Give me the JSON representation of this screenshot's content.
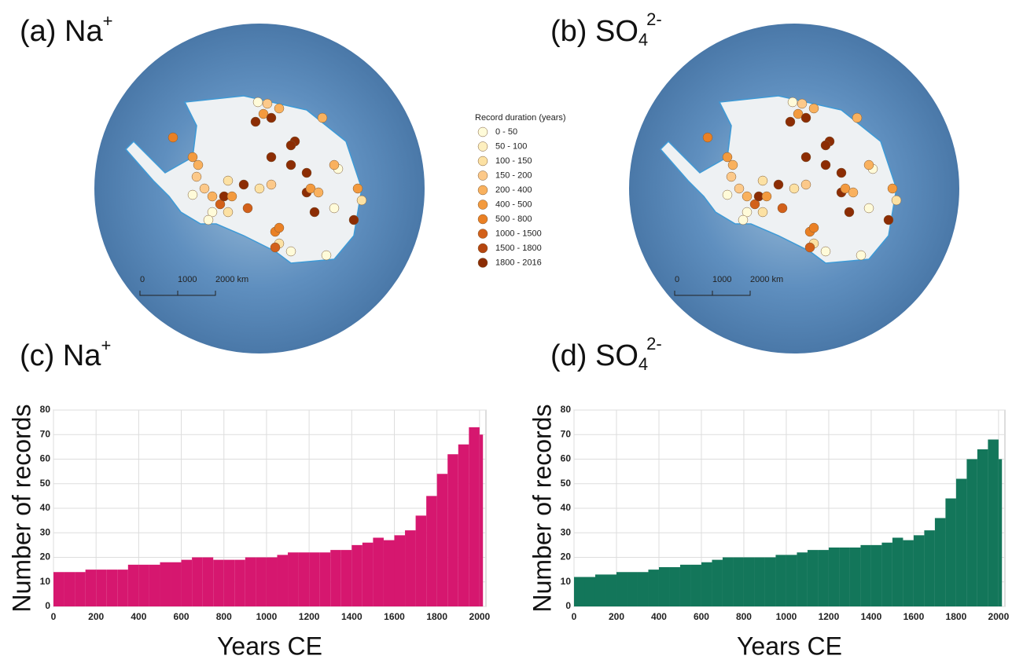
{
  "maps": [
    {
      "text": "(a) Na",
      "sup": "+"
    },
    {
      "text": "(b) SO",
      "sub": "4",
      "sup": "2-"
    }
  ],
  "legend": {
    "title": "Record duration (years)",
    "items": [
      {
        "label": "0 - 50",
        "color": "#fffbd9"
      },
      {
        "label": "50 - 100",
        "color": "#fdefbf"
      },
      {
        "label": "100 - 150",
        "color": "#fce1a3"
      },
      {
        "label": "150 - 200",
        "color": "#fcc98a"
      },
      {
        "label": "200 - 400",
        "color": "#f9b15e"
      },
      {
        "label": "400 - 500",
        "color": "#f39a3e"
      },
      {
        "label": "500 - 800",
        "color": "#ea8024"
      },
      {
        "label": "1000 - 1500",
        "color": "#d2601a"
      },
      {
        "label": "1500 - 1800",
        "color": "#b5460f"
      },
      {
        "label": "1800 - 2016",
        "color": "#8c2d04"
      }
    ]
  },
  "scale_bar": {
    "labels": [
      "0",
      "1000",
      "2000 km"
    ]
  },
  "chart_data": [
    {
      "type": "histogram",
      "title": {
        "text": "(c) Na",
        "sup": "+"
      },
      "xlabel": "Years CE",
      "ylabel": "Number of records",
      "color": "#d6176f",
      "grid": true,
      "bins": [
        0,
        50,
        100,
        150,
        200,
        250,
        300,
        350,
        400,
        450,
        500,
        550,
        600,
        650,
        700,
        750,
        800,
        850,
        900,
        950,
        1000,
        1050,
        1100,
        1150,
        1200,
        1250,
        1300,
        1350,
        1400,
        1450,
        1500,
        1550,
        1600,
        1650,
        1700,
        1750,
        1800,
        1850,
        1900,
        1950,
        2000,
        2016
      ],
      "counts": [
        14,
        14,
        14,
        15,
        15,
        15,
        15,
        17,
        17,
        17,
        18,
        18,
        19,
        20,
        20,
        19,
        19,
        19,
        20,
        20,
        20,
        21,
        22,
        22,
        22,
        22,
        23,
        23,
        25,
        26,
        28,
        27,
        29,
        31,
        37,
        45,
        54,
        62,
        66,
        73,
        70
      ],
      "xlim": [
        0,
        2030
      ],
      "ylim": [
        0,
        80
      ],
      "xticks": [
        0,
        200,
        400,
        600,
        800,
        1000,
        1200,
        1400,
        1600,
        1800,
        2000
      ],
      "yticks": [
        0,
        10,
        20,
        30,
        40,
        50,
        60,
        70,
        80
      ]
    },
    {
      "type": "histogram",
      "title": {
        "text": "(d) SO",
        "sub": "4",
        "sup": "2-"
      },
      "xlabel": "Years CE",
      "ylabel": "Number of records",
      "color": "#13765a",
      "grid": true,
      "bins": [
        0,
        50,
        100,
        150,
        200,
        250,
        300,
        350,
        400,
        450,
        500,
        550,
        600,
        650,
        700,
        750,
        800,
        850,
        900,
        950,
        1000,
        1050,
        1100,
        1150,
        1200,
        1250,
        1300,
        1350,
        1400,
        1450,
        1500,
        1550,
        1600,
        1650,
        1700,
        1750,
        1800,
        1850,
        1900,
        1950,
        2000,
        2016
      ],
      "counts": [
        12,
        12,
        13,
        13,
        14,
        14,
        14,
        15,
        16,
        16,
        17,
        17,
        18,
        19,
        20,
        20,
        20,
        20,
        20,
        21,
        21,
        22,
        23,
        23,
        24,
        24,
        24,
        25,
        25,
        26,
        28,
        27,
        29,
        31,
        36,
        44,
        52,
        60,
        64,
        68,
        60
      ],
      "xlim": [
        0,
        2030
      ],
      "ylim": [
        0,
        80
      ],
      "xticks": [
        0,
        200,
        400,
        600,
        800,
        1000,
        1200,
        1400,
        1600,
        1800,
        2000
      ],
      "yticks": [
        0,
        10,
        20,
        30,
        40,
        50,
        60,
        70,
        80
      ]
    }
  ]
}
